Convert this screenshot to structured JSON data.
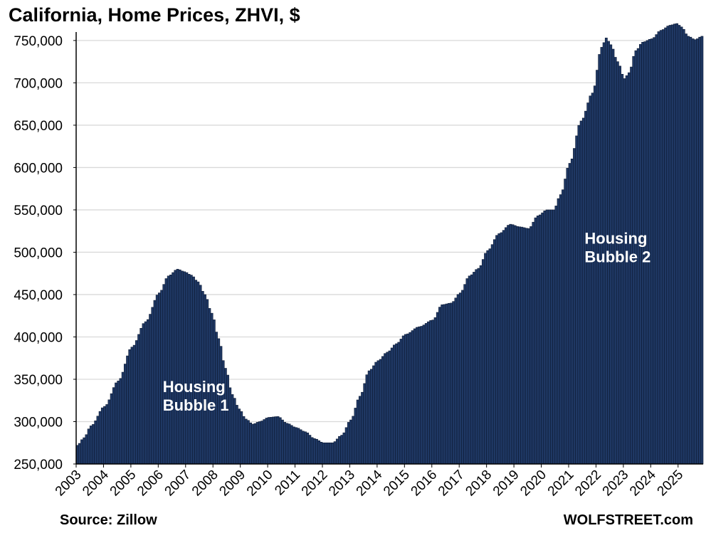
{
  "title": "California, Home Prices, ZHVI, $",
  "source": "Source: Zillow",
  "brand": "WOLFSTREET.com",
  "colors": {
    "bar_fill": "#1f3864",
    "bar_edge": "#0d1a33",
    "grid": "#d9d9d9",
    "axis": "#000000",
    "annotation_text": "#ffffff"
  },
  "chart_data": {
    "type": "bar",
    "title": "California, Home Prices, ZHVI, $",
    "xlabel": "",
    "ylabel": "",
    "ylim": [
      250000,
      760000
    ],
    "yticks": [
      250000,
      300000,
      350000,
      400000,
      450000,
      500000,
      550000,
      600000,
      650000,
      700000,
      750000
    ],
    "ytick_labels": [
      "250,000",
      "300,000",
      "350,000",
      "400,000",
      "450,000",
      "500,000",
      "550,000",
      "600,000",
      "650,000",
      "700,000",
      "750,000"
    ],
    "xtick_labels": [
      "2003",
      "2004",
      "2005",
      "2006",
      "2007",
      "2008",
      "2009",
      "2010",
      "2011",
      "2012",
      "2013",
      "2014",
      "2015",
      "2016",
      "2017",
      "2018",
      "2019",
      "2020",
      "2021",
      "2022",
      "2023",
      "2024",
      "2025"
    ],
    "grid": true,
    "frequency": "monthly",
    "start": "2003-01",
    "end": "2025-11",
    "anchors": [
      [
        "2003-01",
        272000
      ],
      [
        "2003-04",
        281000
      ],
      [
        "2003-07",
        295000
      ],
      [
        "2004-01",
        318000
      ],
      [
        "2004-07",
        348000
      ],
      [
        "2005-01",
        388000
      ],
      [
        "2005-07",
        418000
      ],
      [
        "2006-01",
        452000
      ],
      [
        "2006-05",
        472000
      ],
      [
        "2006-09",
        480000
      ],
      [
        "2006-12",
        477000
      ],
      [
        "2007-03",
        473000
      ],
      [
        "2007-06",
        465000
      ],
      [
        "2007-09",
        450000
      ],
      [
        "2007-12",
        428000
      ],
      [
        "2008-03",
        398000
      ],
      [
        "2008-06",
        363000
      ],
      [
        "2008-09",
        332000
      ],
      [
        "2008-12",
        315000
      ],
      [
        "2009-03",
        303000
      ],
      [
        "2009-06",
        297000
      ],
      [
        "2009-09",
        300000
      ],
      [
        "2010-01",
        305000
      ],
      [
        "2010-05",
        306000
      ],
      [
        "2010-09",
        298000
      ],
      [
        "2011-01",
        293000
      ],
      [
        "2011-05",
        288000
      ],
      [
        "2011-09",
        280000
      ],
      [
        "2012-01",
        275000
      ],
      [
        "2012-05",
        275000
      ],
      [
        "2012-09",
        284000
      ],
      [
        "2013-01",
        302000
      ],
      [
        "2013-05",
        330000
      ],
      [
        "2013-09",
        360000
      ],
      [
        "2014-01",
        372000
      ],
      [
        "2014-05",
        382000
      ],
      [
        "2014-09",
        392000
      ],
      [
        "2015-01",
        403000
      ],
      [
        "2015-07",
        412000
      ],
      [
        "2016-01",
        420000
      ],
      [
        "2016-05",
        438000
      ],
      [
        "2016-09",
        440000
      ],
      [
        "2017-01",
        452000
      ],
      [
        "2017-05",
        472000
      ],
      [
        "2017-09",
        481000
      ],
      [
        "2018-01",
        502000
      ],
      [
        "2018-06",
        522000
      ],
      [
        "2018-11",
        533000
      ],
      [
        "2019-03",
        530000
      ],
      [
        "2019-07",
        528000
      ],
      [
        "2019-11",
        543000
      ],
      [
        "2020-03",
        550000
      ],
      [
        "2020-06",
        550000
      ],
      [
        "2020-09",
        568000
      ],
      [
        "2021-01",
        605000
      ],
      [
        "2021-06",
        655000
      ],
      [
        "2021-11",
        688000
      ],
      [
        "2022-03",
        742000
      ],
      [
        "2022-05",
        753000
      ],
      [
        "2022-07",
        745000
      ],
      [
        "2022-10",
        725000
      ],
      [
        "2023-01",
        705000
      ],
      [
        "2023-03",
        712000
      ],
      [
        "2023-06",
        738000
      ],
      [
        "2023-09",
        748000
      ],
      [
        "2024-01",
        752000
      ],
      [
        "2024-05",
        762000
      ],
      [
        "2024-09",
        768000
      ],
      [
        "2024-12",
        770000
      ],
      [
        "2025-02",
        766000
      ],
      [
        "2025-05",
        755000
      ],
      [
        "2025-08",
        751000
      ],
      [
        "2025-11",
        755000
      ]
    ],
    "annotations": [
      {
        "lines": [
          "Housing",
          "Bubble 1"
        ],
        "at": "2006-03",
        "value": 335000
      },
      {
        "lines": [
          "Housing",
          "Bubble 2"
        ],
        "at": "2021-08",
        "value": 510000
      }
    ]
  }
}
